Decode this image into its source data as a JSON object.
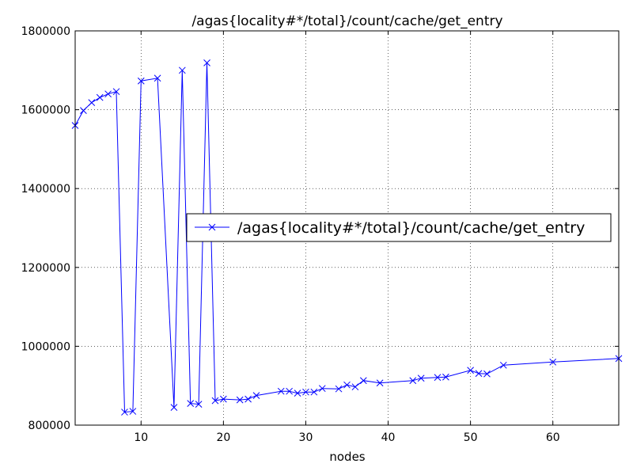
{
  "chart_data": {
    "type": "line",
    "title": "/agas{locality#*/total}/count/cache/get_entry",
    "xlabel": "nodes",
    "ylabel": "",
    "xlim": [
      2,
      68
    ],
    "ylim": [
      800000,
      1800000
    ],
    "x_ticks": [
      10,
      20,
      30,
      40,
      50,
      60
    ],
    "y_ticks": [
      800000,
      1000000,
      1200000,
      1400000,
      1600000,
      1800000
    ],
    "x_tick_labels": [
      "10",
      "20",
      "30",
      "40",
      "50",
      "60"
    ],
    "y_tick_labels": [
      "800000",
      "1000000",
      "1200000",
      "1400000",
      "1600000",
      "1800000"
    ],
    "grid": true,
    "legend_position": "center-right",
    "series": [
      {
        "name": "/agas{locality#*/total}/count/cache/get_entry",
        "color": "#0000ff",
        "marker": "x",
        "x": [
          2,
          3,
          4,
          5,
          6,
          7,
          8,
          9,
          10,
          12,
          14,
          15,
          16,
          17,
          18,
          19,
          20,
          22,
          23,
          24,
          27,
          28,
          29,
          30,
          31,
          32,
          34,
          35,
          36,
          37,
          39,
          43,
          44,
          46,
          47,
          50,
          51,
          52,
          54,
          60,
          68
        ],
        "y": [
          1560000,
          1598000,
          1618000,
          1631000,
          1640000,
          1646000,
          833000,
          835000,
          1673000,
          1680000,
          845000,
          1700000,
          855000,
          853000,
          1719000,
          862000,
          866000,
          864000,
          866000,
          875000,
          886000,
          886000,
          881000,
          884000,
          884000,
          893000,
          892000,
          902000,
          897000,
          913000,
          907000,
          913000,
          919000,
          921000,
          922000,
          939000,
          931000,
          930000,
          952000,
          960000,
          969000
        ]
      }
    ]
  }
}
